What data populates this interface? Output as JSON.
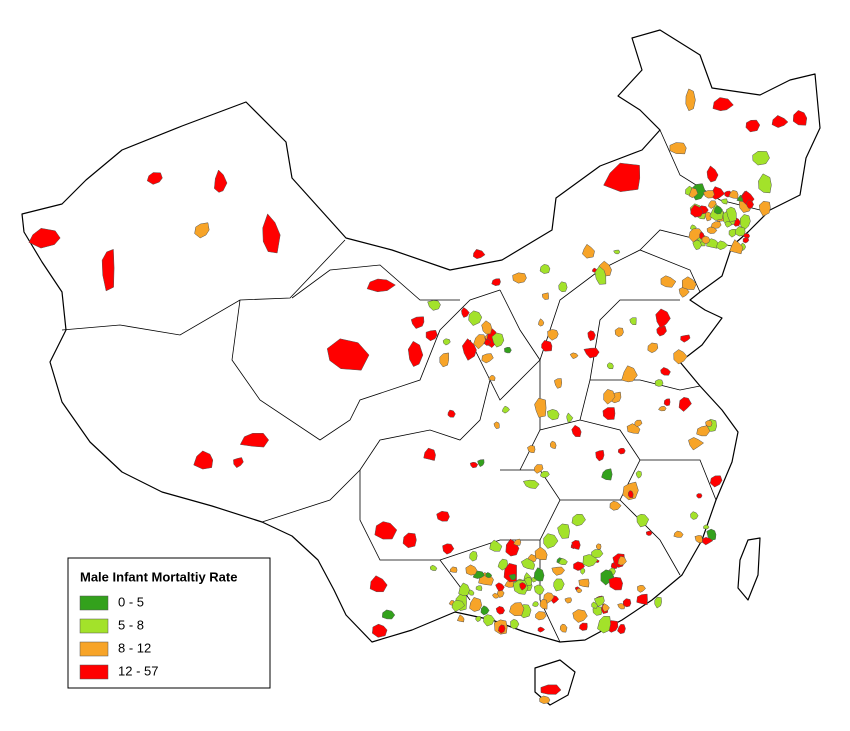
{
  "legend": {
    "title": "Male Infant Mortaltiy Rate",
    "items": [
      {
        "label": "0 - 5",
        "color": "#33a11c"
      },
      {
        "label": "5 - 8",
        "color": "#a3e22a"
      },
      {
        "label": "8 - 12",
        "color": "#f7a428"
      },
      {
        "label": "12 - 57",
        "color": "#ff0000"
      }
    ]
  }
}
